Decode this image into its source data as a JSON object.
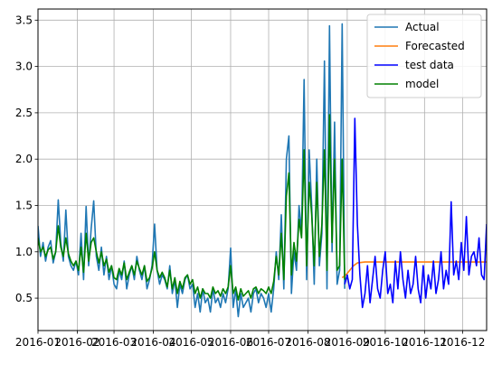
{
  "chart_data": {
    "type": "line",
    "title": "",
    "xlabel": "",
    "ylabel": "",
    "xlim": [
      "2016-01-01",
      "2016-12-20"
    ],
    "ylim": [
      0.15,
      3.62
    ],
    "grid": true,
    "legend_position": "upper right",
    "x_tick_labels": [
      "2016-01",
      "2016-02",
      "2016-03",
      "2016-04",
      "2016-05",
      "2016-06",
      "2016-07",
      "2016-08",
      "2016-09",
      "2016-10",
      "2016-11",
      "2016-12"
    ],
    "y_tick_labels": [
      "0.5",
      "1.0",
      "1.5",
      "2.0",
      "2.5",
      "3.0",
      "3.5"
    ],
    "series": [
      {
        "name": "Actual",
        "color": "#1f77b4",
        "x": [
          "2016-01-01",
          "2016-01-03",
          "2016-01-05",
          "2016-01-07",
          "2016-01-09",
          "2016-01-11",
          "2016-01-13",
          "2016-01-15",
          "2016-01-17",
          "2016-01-19",
          "2016-01-21",
          "2016-01-23",
          "2016-01-25",
          "2016-01-27",
          "2016-01-29",
          "2016-01-31",
          "2016-02-02",
          "2016-02-04",
          "2016-02-06",
          "2016-02-08",
          "2016-02-10",
          "2016-02-12",
          "2016-02-14",
          "2016-02-16",
          "2016-02-18",
          "2016-02-20",
          "2016-02-22",
          "2016-02-24",
          "2016-02-26",
          "2016-02-28",
          "2016-03-01",
          "2016-03-03",
          "2016-03-05",
          "2016-03-07",
          "2016-03-09",
          "2016-03-11",
          "2016-03-13",
          "2016-03-15",
          "2016-03-17",
          "2016-03-19",
          "2016-03-21",
          "2016-03-23",
          "2016-03-25",
          "2016-03-27",
          "2016-03-29",
          "2016-03-31",
          "2016-04-02",
          "2016-04-04",
          "2016-04-06",
          "2016-04-08",
          "2016-04-10",
          "2016-04-12",
          "2016-04-14",
          "2016-04-16",
          "2016-04-18",
          "2016-04-20",
          "2016-04-22",
          "2016-04-24",
          "2016-04-26",
          "2016-04-28",
          "2016-04-30",
          "2016-05-02",
          "2016-05-04",
          "2016-05-06",
          "2016-05-08",
          "2016-05-10",
          "2016-05-12",
          "2016-05-14",
          "2016-05-16",
          "2016-05-18",
          "2016-05-20",
          "2016-05-22",
          "2016-05-24",
          "2016-05-26",
          "2016-05-28",
          "2016-05-30",
          "2016-06-01",
          "2016-06-03",
          "2016-06-05",
          "2016-06-07",
          "2016-06-09",
          "2016-06-11",
          "2016-06-13",
          "2016-06-15",
          "2016-06-17",
          "2016-06-19",
          "2016-06-21",
          "2016-06-23",
          "2016-06-25",
          "2016-06-27",
          "2016-06-29",
          "2016-07-01",
          "2016-07-03",
          "2016-07-05",
          "2016-07-07",
          "2016-07-09",
          "2016-07-11",
          "2016-07-13",
          "2016-07-15",
          "2016-07-17",
          "2016-07-19",
          "2016-07-21",
          "2016-07-23",
          "2016-07-25",
          "2016-07-27",
          "2016-07-29",
          "2016-07-31",
          "2016-08-02",
          "2016-08-04",
          "2016-08-06",
          "2016-08-08",
          "2016-08-10",
          "2016-08-12",
          "2016-08-14",
          "2016-08-16",
          "2016-08-18",
          "2016-08-20",
          "2016-08-22",
          "2016-08-24",
          "2016-08-26",
          "2016-08-28",
          "2016-08-30"
        ],
        "y": [
          1.28,
          0.95,
          1.1,
          0.9,
          1.05,
          1.12,
          0.88,
          1.0,
          1.56,
          1.1,
          0.9,
          1.45,
          0.95,
          0.85,
          0.8,
          0.9,
          0.75,
          1.2,
          0.7,
          1.49,
          0.85,
          1.25,
          1.55,
          0.95,
          0.8,
          1.05,
          0.75,
          0.95,
          0.7,
          0.85,
          0.65,
          0.6,
          0.8,
          0.7,
          0.9,
          0.6,
          0.75,
          0.85,
          0.7,
          0.95,
          0.8,
          0.7,
          0.85,
          0.6,
          0.7,
          0.85,
          1.3,
          0.8,
          0.65,
          0.75,
          0.7,
          0.6,
          0.85,
          0.55,
          0.7,
          0.4,
          0.65,
          0.55,
          0.7,
          0.75,
          0.6,
          0.65,
          0.4,
          0.55,
          0.35,
          0.6,
          0.45,
          0.5,
          0.35,
          0.6,
          0.45,
          0.5,
          0.4,
          0.55,
          0.45,
          0.6,
          1.04,
          0.4,
          0.6,
          0.3,
          0.55,
          0.4,
          0.45,
          0.5,
          0.35,
          0.55,
          0.6,
          0.45,
          0.55,
          0.5,
          0.4,
          0.55,
          0.35,
          0.6,
          1.0,
          0.7,
          1.4,
          0.6,
          2.0,
          2.25,
          0.55,
          1.0,
          0.8,
          1.5,
          1.2,
          2.86,
          0.7,
          2.1,
          1.5,
          0.65,
          2.0,
          0.85,
          1.2,
          3.06,
          0.6,
          3.44,
          1.0,
          2.4,
          0.65,
          0.8,
          3.46,
          0.6
        ],
        "points_recorded": 122
      },
      {
        "name": "Forecasted",
        "color": "#ff7f0e",
        "x": [
          "2016-08-28",
          "2016-08-31",
          "2016-09-03",
          "2016-09-06",
          "2016-09-09",
          "2016-09-15",
          "2016-10-01",
          "2016-11-01",
          "2016-12-01",
          "2016-12-20"
        ],
        "y": [
          0.72,
          0.75,
          0.8,
          0.85,
          0.88,
          0.89,
          0.89,
          0.89,
          0.89,
          0.89
        ]
      },
      {
        "name": "test data",
        "color": "#0000ff",
        "x": [
          "2016-08-30",
          "2016-09-01",
          "2016-09-03",
          "2016-09-05",
          "2016-09-07",
          "2016-09-09",
          "2016-09-11",
          "2016-09-13",
          "2016-09-15",
          "2016-09-17",
          "2016-09-19",
          "2016-09-21",
          "2016-09-23",
          "2016-09-25",
          "2016-09-27",
          "2016-09-29",
          "2016-10-01",
          "2016-10-03",
          "2016-10-05",
          "2016-10-07",
          "2016-10-09",
          "2016-10-11",
          "2016-10-13",
          "2016-10-15",
          "2016-10-17",
          "2016-10-19",
          "2016-10-21",
          "2016-10-23",
          "2016-10-25",
          "2016-10-27",
          "2016-10-29",
          "2016-10-31",
          "2016-11-02",
          "2016-11-04",
          "2016-11-06",
          "2016-11-08",
          "2016-11-10",
          "2016-11-12",
          "2016-11-14",
          "2016-11-16",
          "2016-11-18",
          "2016-11-20",
          "2016-11-22",
          "2016-11-24",
          "2016-11-26",
          "2016-11-28",
          "2016-11-30",
          "2016-12-02",
          "2016-12-04",
          "2016-12-06",
          "2016-12-08",
          "2016-12-10",
          "2016-12-12",
          "2016-12-14",
          "2016-12-16",
          "2016-12-18",
          "2016-12-20"
        ],
        "y": [
          0.65,
          0.75,
          0.6,
          0.7,
          2.44,
          1.3,
          0.75,
          0.4,
          0.55,
          0.85,
          0.45,
          0.7,
          0.95,
          0.6,
          0.5,
          0.8,
          1.0,
          0.55,
          0.65,
          0.45,
          0.9,
          0.6,
          1.0,
          0.7,
          0.5,
          0.8,
          0.55,
          0.65,
          0.95,
          0.6,
          0.45,
          0.85,
          0.5,
          0.75,
          0.6,
          0.9,
          0.55,
          0.7,
          1.0,
          0.6,
          0.8,
          0.65,
          1.54,
          0.75,
          0.9,
          0.7,
          1.1,
          0.8,
          1.38,
          0.75,
          0.95,
          1.0,
          0.85,
          1.15,
          0.75,
          0.7,
          1.3
        ]
      },
      {
        "name": "model",
        "color": "#008000",
        "x": [
          "2016-01-01",
          "2016-01-03",
          "2016-01-05",
          "2016-01-07",
          "2016-01-09",
          "2016-01-11",
          "2016-01-13",
          "2016-01-15",
          "2016-01-17",
          "2016-01-19",
          "2016-01-21",
          "2016-01-23",
          "2016-01-25",
          "2016-01-27",
          "2016-01-29",
          "2016-01-31",
          "2016-02-02",
          "2016-02-04",
          "2016-02-06",
          "2016-02-08",
          "2016-02-10",
          "2016-02-12",
          "2016-02-14",
          "2016-02-16",
          "2016-02-18",
          "2016-02-20",
          "2016-02-22",
          "2016-02-24",
          "2016-02-26",
          "2016-02-28",
          "2016-03-01",
          "2016-03-03",
          "2016-03-05",
          "2016-03-07",
          "2016-03-09",
          "2016-03-11",
          "2016-03-13",
          "2016-03-15",
          "2016-03-17",
          "2016-03-19",
          "2016-03-21",
          "2016-03-23",
          "2016-03-25",
          "2016-03-27",
          "2016-03-29",
          "2016-03-31",
          "2016-04-02",
          "2016-04-04",
          "2016-04-06",
          "2016-04-08",
          "2016-04-10",
          "2016-04-12",
          "2016-04-14",
          "2016-04-16",
          "2016-04-18",
          "2016-04-20",
          "2016-04-22",
          "2016-04-24",
          "2016-04-26",
          "2016-04-28",
          "2016-04-30",
          "2016-05-02",
          "2016-05-04",
          "2016-05-06",
          "2016-05-08",
          "2016-05-10",
          "2016-05-12",
          "2016-05-14",
          "2016-05-16",
          "2016-05-18",
          "2016-05-20",
          "2016-05-22",
          "2016-05-24",
          "2016-05-26",
          "2016-05-28",
          "2016-05-30",
          "2016-06-01",
          "2016-06-03",
          "2016-06-05",
          "2016-06-07",
          "2016-06-09",
          "2016-06-11",
          "2016-06-13",
          "2016-06-15",
          "2016-06-17",
          "2016-06-19",
          "2016-06-21",
          "2016-06-23",
          "2016-06-25",
          "2016-06-27",
          "2016-06-29",
          "2016-07-01",
          "2016-07-03",
          "2016-07-05",
          "2016-07-07",
          "2016-07-09",
          "2016-07-11",
          "2016-07-13",
          "2016-07-15",
          "2016-07-17",
          "2016-07-19",
          "2016-07-21",
          "2016-07-23",
          "2016-07-25",
          "2016-07-27",
          "2016-07-29",
          "2016-07-31",
          "2016-08-02",
          "2016-08-04",
          "2016-08-06",
          "2016-08-08",
          "2016-08-10",
          "2016-08-12",
          "2016-08-14",
          "2016-08-16",
          "2016-08-18",
          "2016-08-20",
          "2016-08-22",
          "2016-08-24",
          "2016-08-26",
          "2016-08-28",
          "2016-08-30"
        ],
        "y": [
          1.15,
          1.0,
          1.05,
          0.95,
          1.02,
          1.05,
          0.92,
          1.0,
          1.28,
          1.05,
          0.95,
          1.15,
          0.98,
          0.9,
          0.85,
          0.9,
          0.8,
          1.05,
          0.78,
          1.2,
          0.9,
          1.1,
          1.15,
          1.0,
          0.88,
          1.0,
          0.85,
          0.92,
          0.78,
          0.85,
          0.72,
          0.7,
          0.82,
          0.75,
          0.88,
          0.7,
          0.78,
          0.85,
          0.75,
          0.9,
          0.82,
          0.75,
          0.85,
          0.68,
          0.72,
          0.82,
          1.0,
          0.8,
          0.72,
          0.78,
          0.72,
          0.62,
          0.8,
          0.6,
          0.72,
          0.55,
          0.68,
          0.6,
          0.72,
          0.75,
          0.65,
          0.7,
          0.55,
          0.62,
          0.5,
          0.6,
          0.55,
          0.55,
          0.5,
          0.62,
          0.55,
          0.58,
          0.52,
          0.6,
          0.55,
          0.62,
          0.85,
          0.55,
          0.62,
          0.48,
          0.6,
          0.52,
          0.55,
          0.58,
          0.5,
          0.6,
          0.62,
          0.55,
          0.6,
          0.58,
          0.55,
          0.62,
          0.55,
          0.68,
          0.95,
          0.75,
          1.2,
          0.7,
          1.6,
          1.85,
          0.75,
          1.1,
          0.9,
          1.35,
          1.15,
          2.1,
          0.85,
          1.75,
          1.4,
          0.85,
          1.75,
          0.95,
          1.3,
          2.1,
          0.8,
          2.48,
          1.1,
          2.0,
          0.8,
          0.85,
          2.0,
          0.7
        ]
      }
    ]
  }
}
